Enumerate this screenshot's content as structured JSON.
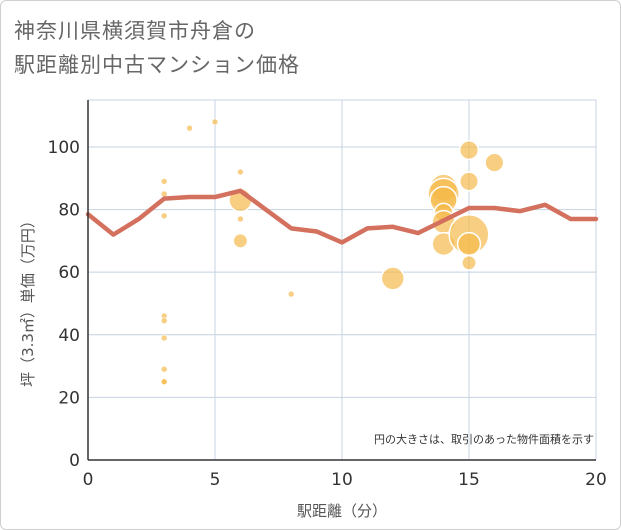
{
  "title": {
    "line1": "神奈川県横須賀市舟倉の",
    "line2": "駅距離別中古マンション価格"
  },
  "chart_data": {
    "type": "scatter",
    "title": "神奈川県横須賀市舟倉の駅距離別中古マンション価格",
    "xlabel": "駅距離（分）",
    "ylabel": "坪（3.3㎡）単価（万円）",
    "xlim": [
      0,
      20
    ],
    "ylim": [
      0,
      115
    ],
    "xticks": [
      "0",
      "5",
      "10",
      "15",
      "20"
    ],
    "yticks": [
      "0",
      "20",
      "40",
      "60",
      "80",
      "100"
    ],
    "grid": true,
    "note": "円の大きさは、取引のあった物件面積を示す",
    "bubbles": [
      {
        "x": 3,
        "y": 89,
        "size": 1
      },
      {
        "x": 3,
        "y": 85,
        "size": 1
      },
      {
        "x": 3,
        "y": 78,
        "size": 1
      },
      {
        "x": 3,
        "y": 46,
        "size": 1
      },
      {
        "x": 3,
        "y": 44.5,
        "size": 1
      },
      {
        "x": 3,
        "y": 39,
        "size": 1
      },
      {
        "x": 3,
        "y": 29,
        "size": 1
      },
      {
        "x": 3,
        "y": 25,
        "size": 1
      },
      {
        "x": 3,
        "y": 25,
        "size": 1
      },
      {
        "x": 4,
        "y": 106,
        "size": 1
      },
      {
        "x": 5,
        "y": 108,
        "size": 1
      },
      {
        "x": 6,
        "y": 92,
        "size": 1
      },
      {
        "x": 6,
        "y": 83,
        "size": 5
      },
      {
        "x": 6,
        "y": 77,
        "size": 1
      },
      {
        "x": 6,
        "y": 70,
        "size": 3
      },
      {
        "x": 8,
        "y": 53,
        "size": 1
      },
      {
        "x": 12,
        "y": 58,
        "size": 5
      },
      {
        "x": 14,
        "y": 87,
        "size": 6
      },
      {
        "x": 14,
        "y": 85,
        "size": 7
      },
      {
        "x": 14,
        "y": 83,
        "size": 6
      },
      {
        "x": 14,
        "y": 79,
        "size": 4
      },
      {
        "x": 14,
        "y": 76,
        "size": 5
      },
      {
        "x": 14,
        "y": 69,
        "size": 5
      },
      {
        "x": 15,
        "y": 99,
        "size": 4
      },
      {
        "x": 15,
        "y": 89,
        "size": 4
      },
      {
        "x": 15,
        "y": 72,
        "size": 9
      },
      {
        "x": 15,
        "y": 69,
        "size": 5
      },
      {
        "x": 15,
        "y": 63,
        "size": 3
      },
      {
        "x": 16,
        "y": 95,
        "size": 4
      }
    ],
    "series": [
      {
        "type": "line",
        "x": [
          0,
          1,
          2,
          3,
          4,
          5,
          6,
          7,
          8,
          9,
          10,
          11,
          12,
          13,
          14,
          15,
          16,
          17,
          18,
          19,
          20
        ],
        "y": [
          78.5,
          72,
          77,
          83.5,
          84,
          84,
          86,
          80,
          74,
          73,
          69.5,
          74,
          74.5,
          72.5,
          76.5,
          80.5,
          80.5,
          79.5,
          81.5,
          77,
          77
        ]
      }
    ],
    "colors": {
      "bubble": "#f5b847",
      "line": "#d4705e",
      "grid": "#c5d3e0",
      "axis": "#333333"
    }
  }
}
